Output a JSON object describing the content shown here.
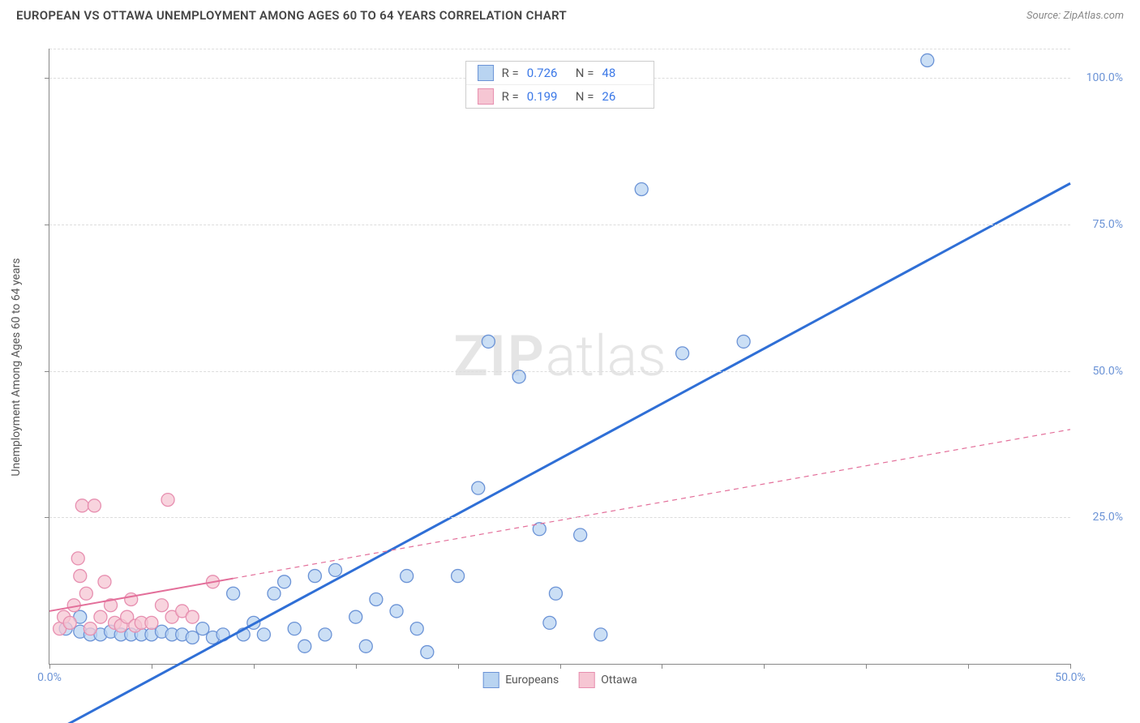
{
  "header": {
    "title": "EUROPEAN VS OTTAWA UNEMPLOYMENT AMONG AGES 60 TO 64 YEARS CORRELATION CHART",
    "source_prefix": "Source: ",
    "source_name": "ZipAtlas.com"
  },
  "chart": {
    "type": "scatter-with-regression",
    "y_axis_label": "Unemployment Among Ages 60 to 64 years",
    "watermark_a": "ZIP",
    "watermark_b": "atlas",
    "background_color": "#ffffff",
    "grid_color": "#dddddd",
    "axis_color": "#888888",
    "xlim": [
      0,
      50
    ],
    "ylim": [
      0,
      105
    ],
    "x_ticks": [
      0,
      5,
      10,
      15,
      20,
      25,
      30,
      35,
      40,
      45,
      50
    ],
    "x_tick_labels": {
      "0": "0.0%",
      "50": "50.0%"
    },
    "y_ticks": [
      25,
      50,
      75,
      100
    ],
    "y_tick_labels": {
      "25": "25.0%",
      "50": "50.0%",
      "75": "75.0%",
      "100": "100.0%"
    },
    "tick_label_color": "#6b93d6",
    "tick_label_fontsize": 14,
    "series": [
      {
        "name": "Europeans",
        "color_fill": "#b9d4f1",
        "color_stroke": "#6b93d6",
        "marker_radius": 8,
        "marker_opacity": 0.75,
        "line_color": "#2f6fd6",
        "line_width": 3,
        "line_dash": "none",
        "trend_solid_xrange": [
          0,
          50
        ],
        "trend_y_at_x0": -12,
        "trend_y_at_xmax": 82,
        "R": "0.726",
        "N": "48",
        "points": [
          [
            0.8,
            6
          ],
          [
            1.5,
            5.5
          ],
          [
            2,
            5
          ],
          [
            2.5,
            5
          ],
          [
            3,
            5.5
          ],
          [
            3.5,
            5
          ],
          [
            4,
            5
          ],
          [
            4.5,
            5
          ],
          [
            5,
            5
          ],
          [
            5.5,
            5.5
          ],
          [
            6,
            5
          ],
          [
            6.5,
            5
          ],
          [
            7,
            4.5
          ],
          [
            7.5,
            6
          ],
          [
            8,
            4.5
          ],
          [
            8.5,
            5
          ],
          [
            9,
            12
          ],
          [
            9.5,
            5
          ],
          [
            10,
            7
          ],
          [
            10.5,
            5
          ],
          [
            11,
            12
          ],
          [
            11.5,
            14
          ],
          [
            12,
            6
          ],
          [
            12.5,
            3
          ],
          [
            13,
            15
          ],
          [
            13.5,
            5
          ],
          [
            14,
            16
          ],
          [
            15,
            8
          ],
          [
            15.5,
            3
          ],
          [
            16,
            11
          ],
          [
            17,
            9
          ],
          [
            17.5,
            15
          ],
          [
            18,
            6
          ],
          [
            18.5,
            2
          ],
          [
            20,
            15
          ],
          [
            21,
            30
          ],
          [
            21.5,
            55
          ],
          [
            23,
            49
          ],
          [
            24,
            23
          ],
          [
            24.5,
            7
          ],
          [
            24.8,
            12
          ],
          [
            26,
            22
          ],
          [
            27,
            5
          ],
          [
            29,
            81
          ],
          [
            31,
            53
          ],
          [
            34,
            55
          ],
          [
            43,
            103
          ],
          [
            1.5,
            8
          ]
        ]
      },
      {
        "name": "Ottawa",
        "color_fill": "#f6c6d3",
        "color_stroke": "#e78fb0",
        "marker_radius": 8,
        "marker_opacity": 0.75,
        "line_color": "#e36f9a",
        "line_width": 2,
        "line_dash": "6,5",
        "trend_solid_xrange": [
          0,
          9
        ],
        "trend_dashed_xrange": [
          9,
          50
        ],
        "trend_y_at_x0": 9,
        "trend_y_at_xmax": 40,
        "R": "0.199",
        "N": "26",
        "points": [
          [
            0.5,
            6
          ],
          [
            0.7,
            8
          ],
          [
            1,
            7
          ],
          [
            1.2,
            10
          ],
          [
            1.4,
            18
          ],
          [
            1.5,
            15
          ],
          [
            1.6,
            27
          ],
          [
            1.8,
            12
          ],
          [
            2,
            6
          ],
          [
            2.2,
            27
          ],
          [
            2.5,
            8
          ],
          [
            2.7,
            14
          ],
          [
            3,
            10
          ],
          [
            3.2,
            7
          ],
          [
            3.5,
            6.5
          ],
          [
            3.8,
            8
          ],
          [
            4,
            11
          ],
          [
            4.2,
            6.5
          ],
          [
            4.5,
            7
          ],
          [
            5,
            7
          ],
          [
            5.5,
            10
          ],
          [
            5.8,
            28
          ],
          [
            6,
            8
          ],
          [
            6.5,
            9
          ],
          [
            7,
            8
          ],
          [
            8,
            14
          ]
        ]
      }
    ],
    "stats_legend": {
      "R_prefix": "R =",
      "N_prefix": "N ="
    },
    "bottom_legend": {
      "items": [
        "Europeans",
        "Ottawa"
      ]
    }
  }
}
